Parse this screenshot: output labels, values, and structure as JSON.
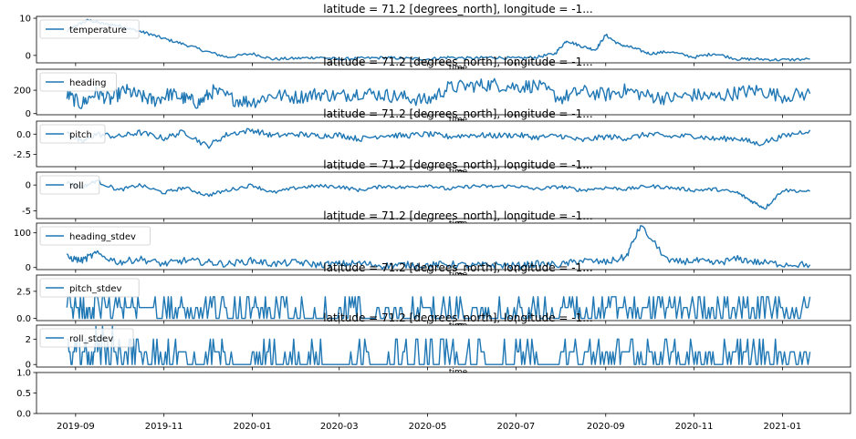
{
  "chart_data": [
    {
      "type": "line",
      "title": "latitude = 71.2 [degrees_north], longitude = -1...",
      "xlabel": "time",
      "legend": "temperature",
      "legend_position": "upper-left",
      "ylim": [
        -2,
        10.5
      ],
      "yticks": [
        0,
        10
      ],
      "ytick_labels": [
        "0",
        "10"
      ],
      "color": "#1f77b4",
      "x": [
        "2019-08-26",
        "2019-09-01",
        "2019-09-10",
        "2019-09-20",
        "2019-10-01",
        "2019-10-10",
        "2019-10-20",
        "2019-11-01",
        "2019-11-15",
        "2019-12-01",
        "2019-12-15",
        "2020-01-01",
        "2020-01-15",
        "2020-02-01",
        "2020-02-15",
        "2020-03-01",
        "2020-03-15",
        "2020-04-01",
        "2020-04-15",
        "2020-05-01",
        "2020-05-15",
        "2020-06-01",
        "2020-06-15",
        "2020-07-01",
        "2020-07-15",
        "2020-07-28",
        "2020-08-05",
        "2020-08-15",
        "2020-08-25",
        "2020-09-01",
        "2020-09-10",
        "2020-09-20",
        "2020-10-01",
        "2020-10-15",
        "2020-11-01",
        "2020-11-15",
        "2020-12-01",
        "2020-12-15",
        "2021-01-01",
        "2021-01-20"
      ],
      "y": [
        6.5,
        8.0,
        9.5,
        8.5,
        8.0,
        7.0,
        6.0,
        4.5,
        3.0,
        1.0,
        -0.5,
        0.5,
        -1.0,
        -0.8,
        -0.5,
        -1.0,
        -0.8,
        -0.6,
        -0.8,
        -1.0,
        -0.5,
        -0.8,
        -0.5,
        -0.8,
        -0.5,
        0.5,
        4.0,
        2.5,
        1.5,
        5.5,
        3.0,
        2.0,
        0.5,
        1.0,
        -0.5,
        0.5,
        -1.0,
        -1.0,
        -1.2,
        -1.0
      ]
    },
    {
      "type": "line",
      "title": "latitude = 71.2 [degrees_north], longitude = -1...",
      "xlabel": "time",
      "legend": "heading",
      "legend_position": "upper-left",
      "ylim": [
        -10,
        380
      ],
      "yticks": [
        0,
        200
      ],
      "ytick_labels": [
        "0",
        "200"
      ],
      "color": "#1f77b4",
      "x": [
        "2019-08-26",
        "2019-09-05",
        "2019-09-15",
        "2019-09-25",
        "2019-10-05",
        "2019-10-15",
        "2019-10-25",
        "2019-11-05",
        "2019-11-15",
        "2019-11-25",
        "2019-12-05",
        "2019-12-20",
        "2020-01-01",
        "2020-01-15",
        "2020-02-01",
        "2020-02-15",
        "2020-03-01",
        "2020-03-15",
        "2020-04-01",
        "2020-04-15",
        "2020-05-01",
        "2020-05-15",
        "2020-06-01",
        "2020-06-15",
        "2020-07-01",
        "2020-07-15",
        "2020-08-01",
        "2020-08-15",
        "2020-09-01",
        "2020-09-15",
        "2020-10-01",
        "2020-10-15",
        "2020-11-01",
        "2020-11-15",
        "2020-12-01",
        "2020-12-15",
        "2021-01-01",
        "2021-01-20"
      ],
      "y": [
        160,
        80,
        180,
        120,
        200,
        150,
        110,
        170,
        130,
        90,
        190,
        120,
        100,
        160,
        140,
        170,
        150,
        180,
        160,
        140,
        110,
        220,
        240,
        250,
        230,
        240,
        130,
        190,
        160,
        200,
        150,
        130,
        160,
        140,
        180,
        200,
        150,
        170
      ]
    },
    {
      "type": "line",
      "title": "latitude = 71.2 [degrees_north], longitude = -1...",
      "xlabel": "time",
      "legend": "pitch",
      "legend_position": "upper-left",
      "ylim": [
        -4,
        1.6
      ],
      "yticks": [
        -2.5,
        0.0
      ],
      "ytick_labels": [
        "-2.5",
        "0.0"
      ],
      "color": "#1f77b4",
      "x": [
        "2019-08-26",
        "2019-09-05",
        "2019-09-15",
        "2019-10-01",
        "2019-10-15",
        "2019-11-01",
        "2019-11-15",
        "2019-12-01",
        "2019-12-15",
        "2020-01-01",
        "2020-01-15",
        "2020-02-01",
        "2020-02-15",
        "2020-03-01",
        "2020-03-15",
        "2020-04-01",
        "2020-04-15",
        "2020-05-01",
        "2020-05-15",
        "2020-06-01",
        "2020-06-15",
        "2020-07-01",
        "2020-07-15",
        "2020-08-01",
        "2020-08-15",
        "2020-09-01",
        "2020-09-15",
        "2020-10-01",
        "2020-10-15",
        "2020-11-01",
        "2020-11-15",
        "2020-12-01",
        "2020-12-15",
        "2021-01-01",
        "2021-01-20"
      ],
      "y": [
        0.2,
        -1.0,
        0.0,
        -0.3,
        0.2,
        -0.5,
        0.3,
        -1.5,
        0.0,
        0.5,
        -0.2,
        0.0,
        -0.2,
        -0.1,
        -0.6,
        -0.1,
        -0.2,
        0.0,
        -0.3,
        -0.1,
        -0.2,
        -0.1,
        -0.4,
        -0.2,
        -0.8,
        -0.3,
        -0.5,
        0.0,
        -0.3,
        -0.2,
        -0.6,
        -0.5,
        -1.2,
        -0.3,
        0.5
      ]
    },
    {
      "type": "line",
      "title": "latitude = 71.2 [degrees_north], longitude = -1...",
      "xlabel": "time",
      "legend": "roll",
      "legend_position": "upper-left",
      "ylim": [
        -6.5,
        2.5
      ],
      "yticks": [
        -5,
        0
      ],
      "ytick_labels": [
        "-5",
        "0"
      ],
      "color": "#1f77b4",
      "x": [
        "2019-08-26",
        "2019-09-05",
        "2019-09-15",
        "2019-10-01",
        "2019-10-15",
        "2019-11-01",
        "2019-11-15",
        "2019-12-01",
        "2019-12-15",
        "2020-01-01",
        "2020-01-15",
        "2020-02-01",
        "2020-02-15",
        "2020-03-01",
        "2020-03-15",
        "2020-04-01",
        "2020-04-15",
        "2020-05-01",
        "2020-05-15",
        "2020-06-01",
        "2020-06-15",
        "2020-07-01",
        "2020-07-15",
        "2020-08-01",
        "2020-08-15",
        "2020-09-01",
        "2020-09-15",
        "2020-10-01",
        "2020-10-15",
        "2020-11-01",
        "2020-11-15",
        "2020-12-01",
        "2020-12-10",
        "2020-12-20",
        "2021-01-01",
        "2021-01-20"
      ],
      "y": [
        0.5,
        -0.5,
        0.8,
        -1.0,
        0.0,
        -1.5,
        -0.5,
        -2.0,
        -1.0,
        0.0,
        -1.5,
        -0.5,
        -0.2,
        -0.3,
        -1.0,
        -0.2,
        -0.5,
        0.0,
        -0.8,
        -0.2,
        -0.3,
        -0.2,
        -0.8,
        -0.3,
        -1.0,
        -0.5,
        -0.8,
        -0.2,
        -0.5,
        -1.0,
        -0.8,
        -1.5,
        -3.0,
        -4.5,
        -1.0,
        -1.2
      ]
    },
    {
      "type": "line",
      "title": "latitude = 71.2 [degrees_north], longitude = -1...",
      "xlabel": "time",
      "legend": "heading_stdev",
      "legend_position": "upper-left",
      "ylim": [
        -6,
        128
      ],
      "yticks": [
        0,
        100
      ],
      "ytick_labels": [
        "0",
        "100"
      ],
      "color": "#1f77b4",
      "x": [
        "2019-08-26",
        "2019-09-05",
        "2019-09-15",
        "2019-10-01",
        "2019-10-15",
        "2019-11-01",
        "2019-11-15",
        "2019-12-01",
        "2019-12-15",
        "2020-01-01",
        "2020-01-15",
        "2020-02-01",
        "2020-02-15",
        "2020-03-01",
        "2020-03-15",
        "2020-04-01",
        "2020-04-15",
        "2020-05-01",
        "2020-05-15",
        "2020-06-01",
        "2020-06-15",
        "2020-07-01",
        "2020-07-15",
        "2020-08-01",
        "2020-08-15",
        "2020-09-01",
        "2020-09-15",
        "2020-09-25",
        "2020-10-15",
        "2020-11-01",
        "2020-11-15",
        "2020-12-01",
        "2020-12-15",
        "2021-01-01",
        "2021-01-20"
      ],
      "y": [
        30,
        20,
        40,
        15,
        25,
        10,
        20,
        15,
        10,
        20,
        10,
        15,
        8,
        10,
        12,
        5,
        8,
        6,
        10,
        5,
        8,
        5,
        10,
        8,
        20,
        15,
        30,
        120,
        15,
        20,
        12,
        25,
        15,
        10,
        8
      ]
    },
    {
      "type": "line",
      "title": "latitude = 71.2 [degrees_north], longitude = -1...",
      "xlabel": "time",
      "legend": "pitch_stdev",
      "legend_position": "upper-left",
      "ylim": [
        -0.2,
        4.0
      ],
      "yticks": [
        0.0,
        2.5
      ],
      "ytick_labels": [
        "0.0",
        "2.5"
      ],
      "color": "#1f77b4",
      "x": [
        "2019-08-26",
        "2019-09-05",
        "2019-09-15",
        "2019-10-01",
        "2019-10-15",
        "2019-11-01",
        "2019-11-15",
        "2019-12-01",
        "2019-12-15",
        "2020-01-01",
        "2020-01-15",
        "2020-02-01",
        "2020-02-15",
        "2020-03-01",
        "2020-03-15",
        "2020-04-01",
        "2020-04-15",
        "2020-05-01",
        "2020-05-15",
        "2020-06-01",
        "2020-06-15",
        "2020-07-01",
        "2020-07-15",
        "2020-08-01",
        "2020-08-15",
        "2020-09-01",
        "2020-09-15",
        "2020-10-01",
        "2020-10-15",
        "2020-11-01",
        "2020-11-15",
        "2020-12-01",
        "2020-12-15",
        "2021-01-01",
        "2021-01-20"
      ],
      "y": [
        2,
        1,
        2,
        2,
        1,
        2,
        1,
        1,
        0,
        1,
        0,
        0,
        0,
        1,
        0,
        1,
        0,
        1,
        0,
        1,
        0,
        1,
        0,
        2,
        1,
        2,
        1,
        2,
        1,
        2,
        1,
        2,
        2,
        1,
        2
      ]
    },
    {
      "type": "line",
      "title": "latitude = 71.2 [degrees_north], longitude = -1...",
      "xlabel": "time",
      "legend": "roll_stdev",
      "legend_position": "upper-left",
      "ylim": [
        -0.2,
        3.1
      ],
      "yticks": [
        0,
        2
      ],
      "ytick_labels": [
        "0",
        "2"
      ],
      "color": "#1f77b4",
      "x": [
        "2019-08-26",
        "2019-09-05",
        "2019-09-15",
        "2019-10-01",
        "2019-10-15",
        "2019-11-01",
        "2019-11-15",
        "2019-12-01",
        "2019-12-15",
        "2020-01-01",
        "2020-01-15",
        "2020-02-01",
        "2020-02-15",
        "2020-03-01",
        "2020-03-15",
        "2020-04-01",
        "2020-04-15",
        "2020-05-01",
        "2020-05-15",
        "2020-06-01",
        "2020-06-15",
        "2020-07-01",
        "2020-07-15",
        "2020-08-01",
        "2020-08-15",
        "2020-09-01",
        "2020-09-15",
        "2020-10-01",
        "2020-10-15",
        "2020-11-01",
        "2020-11-15",
        "2020-12-01",
        "2020-12-15",
        "2021-01-01",
        "2021-01-20"
      ],
      "y": [
        2,
        1,
        3,
        2,
        1,
        1,
        0,
        1,
        0,
        1,
        0,
        0,
        0,
        0,
        0,
        0,
        0,
        0,
        0,
        0,
        0,
        1,
        0,
        2,
        1,
        2,
        1,
        2,
        1,
        1,
        1,
        2,
        1,
        1,
        1
      ]
    },
    {
      "type": "line",
      "title": "",
      "xlabel": "",
      "legend": "",
      "ylim": [
        0.0,
        1.0
      ],
      "yticks": [
        0.0,
        0.5,
        1.0
      ],
      "ytick_labels": [
        "0.0",
        "0.5",
        "1.0"
      ],
      "xticks": [
        "2019-09-01",
        "2019-11-01",
        "2020-01-01",
        "2020-03-01",
        "2020-05-01",
        "2020-07-01",
        "2020-09-01",
        "2020-11-01",
        "2021-01-01"
      ],
      "xtick_labels": [
        "2019-09",
        "2019-11",
        "2020-01",
        "2020-03",
        "2020-05",
        "2020-07",
        "2020-09",
        "2020-11",
        "2021-01"
      ],
      "x": [],
      "y": []
    }
  ],
  "shared_xlim": [
    "2019-08-05",
    "2021-02-17"
  ]
}
